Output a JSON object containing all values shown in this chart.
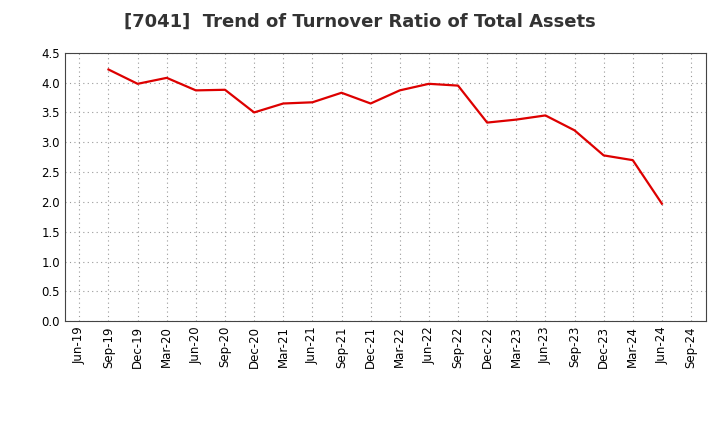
{
  "title": "[7041]  Trend of Turnover Ratio of Total Assets",
  "x_labels": [
    "Jun-19",
    "Sep-19",
    "Dec-19",
    "Mar-20",
    "Jun-20",
    "Sep-20",
    "Dec-20",
    "Mar-21",
    "Jun-21",
    "Sep-21",
    "Dec-21",
    "Mar-22",
    "Jun-22",
    "Sep-22",
    "Dec-22",
    "Mar-23",
    "Jun-23",
    "Sep-23",
    "Dec-23",
    "Mar-24",
    "Jun-24",
    "Sep-24"
  ],
  "values": [
    null,
    4.22,
    3.98,
    4.08,
    3.87,
    3.88,
    3.5,
    3.65,
    3.67,
    3.83,
    3.65,
    3.87,
    3.98,
    3.95,
    3.33,
    3.38,
    3.45,
    3.2,
    2.78,
    2.7,
    1.97,
    null
  ],
  "line_color": "#DD0000",
  "background_color": "#FFFFFF",
  "plot_bg_color": "#FFFFFF",
  "ylim": [
    0.0,
    4.5
  ],
  "yticks": [
    0.0,
    0.5,
    1.0,
    1.5,
    2.0,
    2.5,
    3.0,
    3.5,
    4.0,
    4.5
  ],
  "grid_color": "#999999",
  "title_fontsize": 13,
  "tick_fontsize": 8.5,
  "line_width": 1.6
}
